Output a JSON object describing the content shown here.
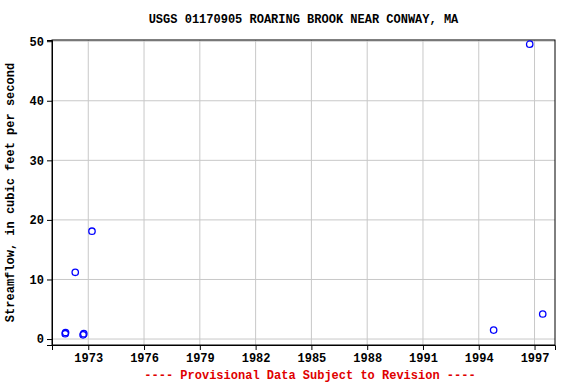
{
  "chart_data": {
    "type": "scatter",
    "title": "USGS 01170905 ROARING BROOK NEAR CONWAY, MA",
    "y_label": "Streamflow, in cubic feet per second",
    "annotations": [
      "---- Provisional Data Subject to Revision ----"
    ],
    "x": [
      1971.76,
      1971.78,
      1972.3,
      1972.72,
      1972.76,
      1973.2,
      1994.8,
      1996.74,
      1997.44
    ],
    "values": [
      0.9,
      1.1,
      11.2,
      0.7,
      0.9,
      18.1,
      1.5,
      49.5,
      4.2
    ],
    "color": "#0000ff",
    "marker": "circle",
    "xlim": [
      1971.05,
      1998.1
    ],
    "ylim": [
      -1,
      50.2
    ],
    "xticks": [
      1973,
      1976,
      1979,
      1982,
      1985,
      1988,
      1991,
      1994,
      1997
    ],
    "yticks": [
      0,
      10,
      20,
      30,
      40,
      50
    ],
    "grid": true
  }
}
